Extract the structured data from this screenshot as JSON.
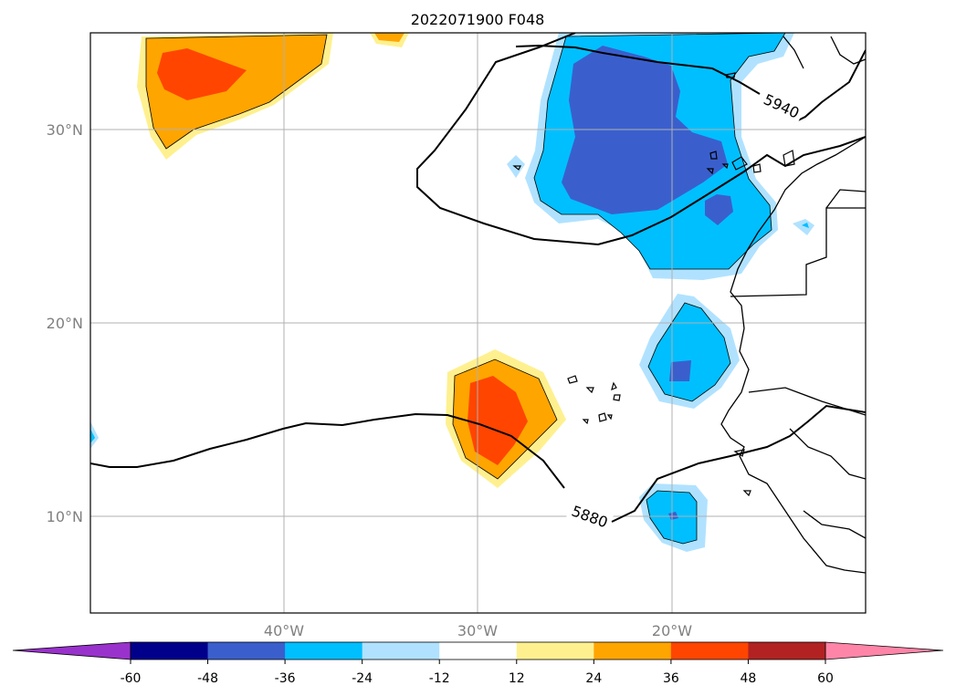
{
  "title": "2022071900 F048",
  "lat_ticks": [
    "30°N",
    "20°N",
    "10°N"
  ],
  "lon_ticks": [
    "40°W",
    "30°W",
    "20°W"
  ],
  "contour_labels": [
    "5940",
    "5880"
  ],
  "colorbar": {
    "ticks": [
      "-60",
      "-48",
      "-36",
      "-24",
      "-12",
      "12",
      "24",
      "36",
      "48",
      "60"
    ],
    "colors": [
      "#9932cc",
      "#00008b",
      "#3a5fcd",
      "#00bfff",
      "#b0e2ff",
      "#ffffff",
      "#fff08f",
      "#ffa500",
      "#ff4500",
      "#b22222",
      "#ff85a8"
    ]
  }
}
